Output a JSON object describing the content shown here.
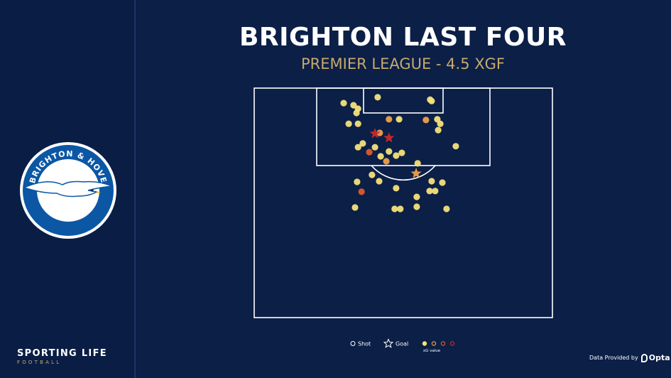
{
  "sidebar": {
    "crest": {
      "top_text": "BRIGHTON & HOVE",
      "bottom_text": "ALBION"
    },
    "brand_name": "SPORTING LIFE",
    "brand_sub": "FOOTBALL"
  },
  "title": "BRIGHTON LAST FOUR",
  "subtitle": "PREMIER LEAGUE - 4.5 XGF",
  "legend": {
    "shot_label": "Shot",
    "goal_label": "Goal",
    "xg_label": "xG value",
    "xg_colors": [
      "#f6e27a",
      "#f0a04b",
      "#e05a2b",
      "#c92a2a"
    ]
  },
  "provider": {
    "text": "Data Provided by",
    "name": "Opta"
  },
  "colors": {
    "background": "#0b1f47",
    "line": "#ffffff",
    "accent": "#c7a96b"
  },
  "chart_data": {
    "type": "scatter",
    "title": "BRIGHTON LAST FOUR",
    "subtitle": "PREMIER LEAGUE - 4.5 XGF",
    "coordinate_system": "half-pitch, x = across pitch (0-100), y = distance from goal line (0-100)",
    "points": [
      {
        "x": 41.4,
        "y": 3.9,
        "xg": 0.1,
        "goal": false
      },
      {
        "x": 59.0,
        "y": 4.9,
        "xg": 0.1,
        "goal": false
      },
      {
        "x": 59.5,
        "y": 5.5,
        "xg": 0.1,
        "goal": false
      },
      {
        "x": 30.0,
        "y": 6.4,
        "xg": 0.1,
        "goal": false
      },
      {
        "x": 33.3,
        "y": 7.3,
        "xg": 0.1,
        "goal": false
      },
      {
        "x": 34.8,
        "y": 8.8,
        "xg": 0.1,
        "goal": false
      },
      {
        "x": 34.3,
        "y": 10.6,
        "xg": 0.1,
        "goal": false
      },
      {
        "x": 45.2,
        "y": 13.3,
        "xg": 0.2,
        "goal": false
      },
      {
        "x": 48.6,
        "y": 13.3,
        "xg": 0.1,
        "goal": false
      },
      {
        "x": 57.6,
        "y": 13.6,
        "xg": 0.2,
        "goal": false
      },
      {
        "x": 61.4,
        "y": 13.3,
        "xg": 0.1,
        "goal": false
      },
      {
        "x": 31.7,
        "y": 15.2,
        "xg": 0.1,
        "goal": false
      },
      {
        "x": 34.8,
        "y": 15.2,
        "xg": 0.1,
        "goal": false
      },
      {
        "x": 62.4,
        "y": 15.2,
        "xg": 0.1,
        "goal": false
      },
      {
        "x": 61.7,
        "y": 17.9,
        "xg": 0.1,
        "goal": false
      },
      {
        "x": 42.1,
        "y": 19.1,
        "xg": 0.2,
        "goal": false
      },
      {
        "x": 40.5,
        "y": 19.4,
        "xg": 0.5,
        "goal": true
      },
      {
        "x": 45.2,
        "y": 21.2,
        "xg": 0.6,
        "goal": true
      },
      {
        "x": 36.4,
        "y": 23.6,
        "xg": 0.1,
        "goal": false
      },
      {
        "x": 34.8,
        "y": 25.2,
        "xg": 0.1,
        "goal": false
      },
      {
        "x": 40.5,
        "y": 25.2,
        "xg": 0.1,
        "goal": false
      },
      {
        "x": 67.6,
        "y": 24.8,
        "xg": 0.1,
        "goal": false
      },
      {
        "x": 38.6,
        "y": 27.3,
        "xg": 0.3,
        "goal": false
      },
      {
        "x": 45.2,
        "y": 27.0,
        "xg": 0.1,
        "goal": false
      },
      {
        "x": 49.5,
        "y": 27.6,
        "xg": 0.1,
        "goal": false
      },
      {
        "x": 47.6,
        "y": 28.8,
        "xg": 0.1,
        "goal": false
      },
      {
        "x": 42.4,
        "y": 29.1,
        "xg": 0.1,
        "goal": false
      },
      {
        "x": 44.3,
        "y": 31.2,
        "xg": 0.2,
        "goal": false
      },
      {
        "x": 54.8,
        "y": 32.1,
        "xg": 0.1,
        "goal": false
      },
      {
        "x": 54.3,
        "y": 36.4,
        "xg": 0.2,
        "goal": true
      },
      {
        "x": 39.5,
        "y": 37.0,
        "xg": 0.1,
        "goal": false
      },
      {
        "x": 34.5,
        "y": 40.0,
        "xg": 0.1,
        "goal": false
      },
      {
        "x": 41.9,
        "y": 39.7,
        "xg": 0.1,
        "goal": false
      },
      {
        "x": 59.5,
        "y": 39.7,
        "xg": 0.1,
        "goal": false
      },
      {
        "x": 63.1,
        "y": 40.3,
        "xg": 0.1,
        "goal": false
      },
      {
        "x": 47.6,
        "y": 42.7,
        "xg": 0.1,
        "goal": false
      },
      {
        "x": 36.0,
        "y": 44.2,
        "xg": 0.4,
        "goal": false
      },
      {
        "x": 58.8,
        "y": 43.9,
        "xg": 0.1,
        "goal": false
      },
      {
        "x": 60.7,
        "y": 43.9,
        "xg": 0.1,
        "goal": false
      },
      {
        "x": 54.5,
        "y": 46.4,
        "xg": 0.1,
        "goal": false
      },
      {
        "x": 33.8,
        "y": 50.9,
        "xg": 0.1,
        "goal": false
      },
      {
        "x": 54.5,
        "y": 50.6,
        "xg": 0.1,
        "goal": false
      },
      {
        "x": 47.1,
        "y": 51.5,
        "xg": 0.1,
        "goal": false
      },
      {
        "x": 49.0,
        "y": 51.5,
        "xg": 0.1,
        "goal": false
      },
      {
        "x": 64.5,
        "y": 51.5,
        "xg": 0.1,
        "goal": false
      }
    ]
  }
}
